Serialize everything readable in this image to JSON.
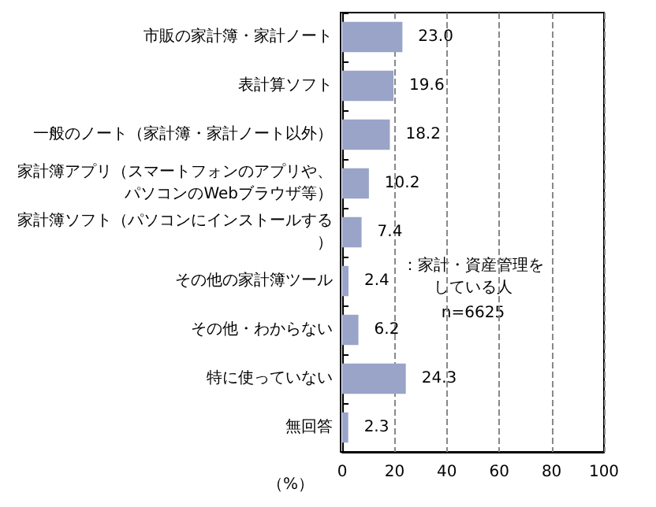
{
  "chart_data": {
    "type": "bar",
    "orientation": "horizontal",
    "categories": [
      "市販の家計簿・家計ノート",
      "表計算ソフト",
      "一般のノート（家計簿・家計ノート以外）",
      "家計簿アプリ（スマートフォンのアプリや、パソコンのWebブラウザ等）",
      "家計簿ソフト（パソコンにインストールする）",
      "その他の家計簿ツール",
      "その他・わからない",
      "特に使っていない",
      "無回答"
    ],
    "values": [
      23.0,
      19.6,
      18.2,
      10.2,
      7.4,
      2.4,
      6.2,
      24.3,
      2.3
    ],
    "value_labels": [
      "23.0",
      "19.6",
      "18.2",
      "10.2",
      "7.4",
      "2.4",
      "6.2",
      "24.3",
      "2.3"
    ],
    "color": "#9aa3c8",
    "xlabel": "（%）",
    "xlim": [
      0,
      100
    ],
    "xticks": [
      0,
      20,
      40,
      60,
      80,
      100
    ],
    "grid": "x",
    "annotations": [
      "：家計・資産管理をしている人",
      "n=6625"
    ]
  }
}
